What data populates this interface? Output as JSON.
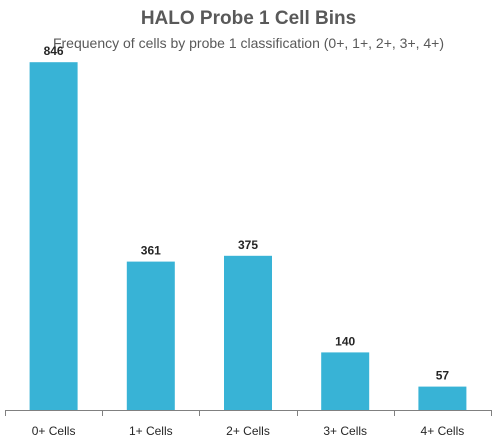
{
  "chart_data": {
    "type": "bar",
    "title": "HALO Probe 1 Cell Bins",
    "subtitle": "Frequency of cells by probe 1 classification (0+, 1+, 2+, 3+, 4+)",
    "categories": [
      "0+ Cells",
      "1+ Cells",
      "2+ Cells",
      "3+ Cells",
      "4+ Cells"
    ],
    "values": [
      846,
      361,
      375,
      140,
      57
    ],
    "xlabel": "",
    "ylabel": "",
    "ylim": [
      0,
      900
    ],
    "grid": false,
    "legend": "none",
    "colors": {
      "bar": "#38B3D6",
      "axis": "#808080",
      "text": "#262626",
      "title": "#595959"
    }
  }
}
